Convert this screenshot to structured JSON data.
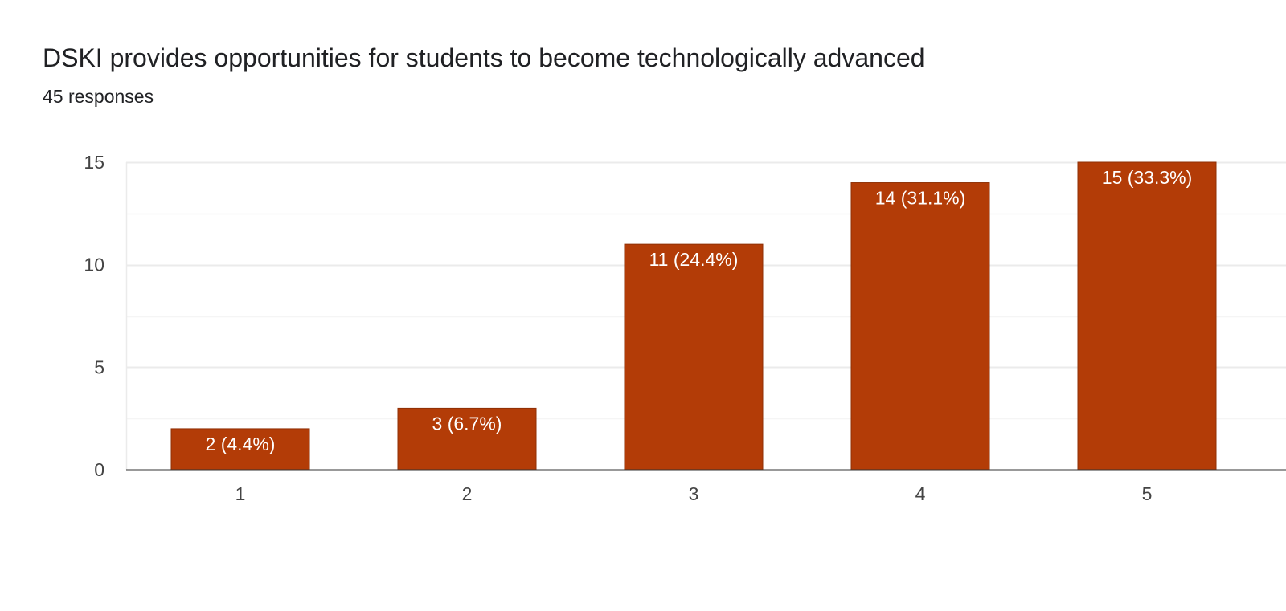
{
  "header": {
    "title": "DSKI provides opportunities for students to become technologically advanced",
    "responses": "45 responses"
  },
  "colors": {
    "bar": "#b33c07",
    "bar_border": "#8f2f05",
    "grid": "#ebebeb",
    "axis": "#333333"
  },
  "chart_data": {
    "type": "bar",
    "title": "DSKI provides opportunities for students to become technologically advanced",
    "subtitle": "45 responses",
    "categories": [
      "1",
      "2",
      "3",
      "4",
      "5"
    ],
    "values": [
      2,
      3,
      11,
      14,
      15
    ],
    "data_labels": [
      "2 (4.4%)",
      "3 (6.7%)",
      "11 (24.4%)",
      "14 (31.1%)",
      "15 (33.3%)"
    ],
    "y_ticks": [
      0,
      5,
      10,
      15
    ],
    "ylim": [
      0,
      15
    ],
    "xlabel": "",
    "ylabel": "",
    "grid": true
  }
}
